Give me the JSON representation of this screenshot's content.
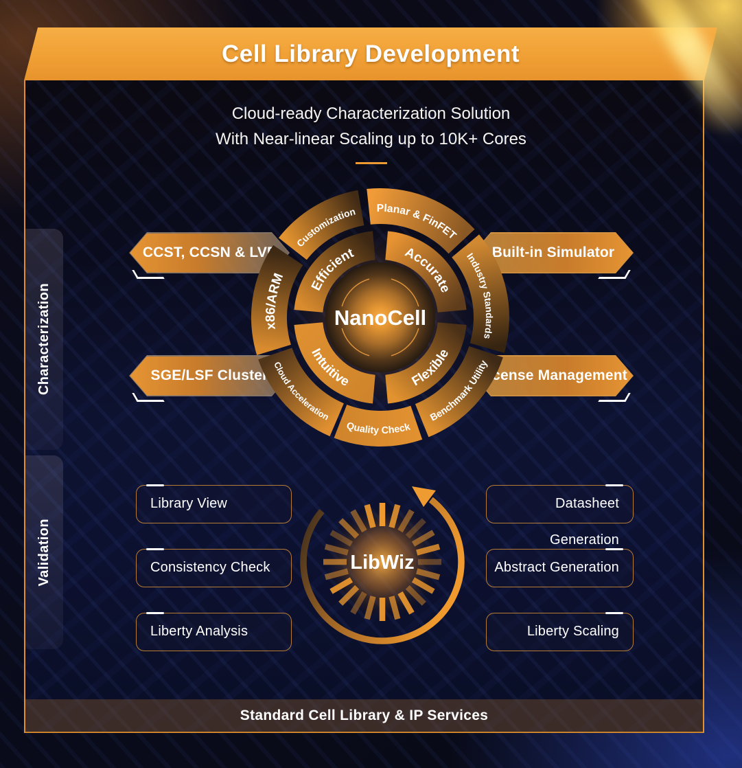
{
  "colors": {
    "accent_orange": "#ED9A33",
    "banner_orange": "#F0A035",
    "segment_bright": "#E2922F",
    "panel_border": "#E8932C",
    "background_navy": "#0D1230",
    "footer_brown": "#50381F"
  },
  "banner": {
    "title": "Cell Library Development"
  },
  "intro": {
    "line1": "Cloud-ready Characterization Solution",
    "line2": "With Near-linear Scaling up to 10K+ Cores"
  },
  "side_labels": {
    "characterization": "Characterization",
    "validation": "Validation"
  },
  "nanocell": {
    "center_label": "NanoCell",
    "outer_segments": [
      {
        "label": "Planar & FinFET",
        "a1": -6,
        "a2": 47,
        "dir": "cw",
        "c1": "#F09B38",
        "c2": "#8A5824"
      },
      {
        "label": "Industry Standards",
        "a1": 50,
        "a2": 106,
        "dir": "cw",
        "c1": "#D08831",
        "c2": "#362411"
      },
      {
        "label": "Benchmark Utility",
        "a1": 108,
        "a2": 158,
        "dir": "ccw",
        "c1": "#3D2916",
        "c2": "#DE9030"
      },
      {
        "label": "Quality Check",
        "a1": 161,
        "a2": 201,
        "dir": "ccw",
        "c1": "#E29130",
        "c2": "#D0852C"
      },
      {
        "label": "Cloud Acceleration",
        "a1": 203,
        "a2": 251,
        "dir": "ccw",
        "c1": "#E09030",
        "c2": "#52361A"
      },
      {
        "label": "x86/ARM",
        "a1": 253,
        "a2": 304,
        "dir": "cw",
        "c1": "#D98B2E",
        "c2": "#3E2914"
      },
      {
        "label": "Customization",
        "a1": 308,
        "a2": 350,
        "dir": "cw",
        "c1": "#E2922F",
        "c2": "#422B15"
      }
    ],
    "inner_segments": [
      {
        "label": "Accurate",
        "a1": 5,
        "a2": 85,
        "dir": "cw",
        "c1": "#E79332",
        "c2": "#5E3C1C"
      },
      {
        "label": "Flexible",
        "a1": 95,
        "a2": 175,
        "dir": "ccw",
        "c1": "#4A3017",
        "c2": "#E2922F"
      },
      {
        "label": "Intuitive",
        "a1": 185,
        "a2": 265,
        "dir": "ccw",
        "c1": "#D0852C",
        "c2": "#DE9030"
      },
      {
        "label": "Efficient",
        "a1": 275,
        "a2": 355,
        "dir": "cw",
        "c1": "#D98B2E",
        "c2": "#3B2713"
      }
    ],
    "left_buttons": [
      {
        "label": "CCST, CCSN & LVF"
      },
      {
        "label": "SGE/LSF Cluster"
      }
    ],
    "right_buttons": [
      {
        "label": "Built-in Simulator"
      },
      {
        "label": "License Management"
      }
    ]
  },
  "libwiz": {
    "center_label": "LibWiz",
    "tick_opacities": [
      1,
      0.85,
      0.5,
      0.3,
      0.55,
      0.8,
      0.35,
      0.6,
      0.8,
      0.45,
      0.9,
      0.7,
      0.95,
      0.6,
      0.4,
      0.75,
      0.9,
      0.5,
      0.65,
      0.45,
      0.35,
      0.6,
      0.5,
      0.9
    ],
    "left_buttons": [
      {
        "label": "Library View"
      },
      {
        "label": "Consistency Check"
      },
      {
        "label": "Liberty Analysis"
      }
    ],
    "right_buttons": [
      {
        "label": "Datasheet Generation"
      },
      {
        "label": "Abstract Generation"
      },
      {
        "label": "Liberty Scaling"
      }
    ]
  },
  "footer": {
    "label": "Standard Cell Library & IP Services"
  }
}
